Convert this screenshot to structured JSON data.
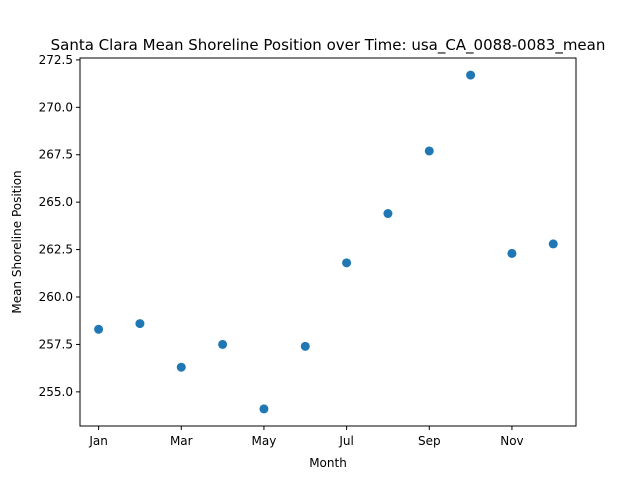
{
  "chart_data": {
    "type": "scatter",
    "title": "Santa Clara Mean Shoreline Position over Time: usa_CA_0088-0083_mean",
    "xlabel": "Month",
    "ylabel": "Mean Shoreline Position",
    "x_tick_labels": [
      "Jan",
      "Mar",
      "May",
      "Jul",
      "Sep",
      "Nov"
    ],
    "x_tick_positions": [
      1,
      3,
      5,
      7,
      9,
      11
    ],
    "x": [
      1,
      2,
      3,
      4,
      5,
      6,
      7,
      8,
      9,
      10,
      11,
      12
    ],
    "y": [
      258.3,
      258.6,
      256.3,
      257.5,
      254.1,
      257.4,
      261.8,
      264.4,
      267.7,
      271.7,
      262.3,
      262.8
    ],
    "xlim": [
      0.55,
      12.55
    ],
    "ylim": [
      253.2,
      272.6
    ],
    "y_ticks": [
      255.0,
      257.5,
      260.0,
      262.5,
      265.0,
      267.5,
      270.0,
      272.5
    ],
    "y_tick_labels": [
      "255.0",
      "257.5",
      "260.0",
      "262.5",
      "265.0",
      "267.5",
      "270.0",
      "272.5"
    ],
    "marker_color": "#1f77b4",
    "grid": false
  }
}
